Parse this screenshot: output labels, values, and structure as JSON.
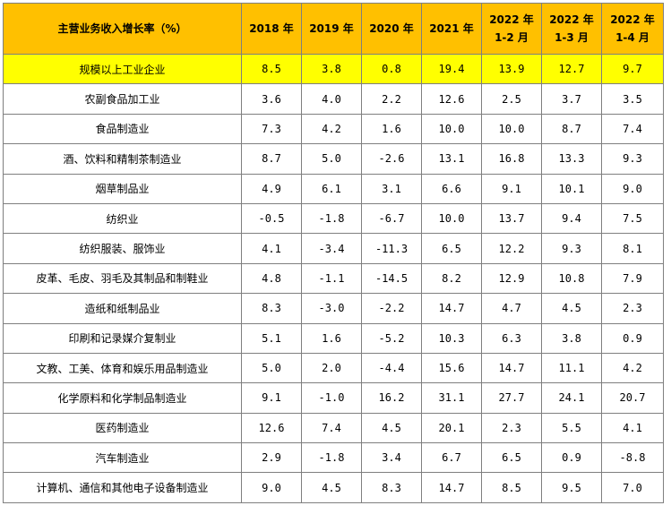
{
  "header": {
    "title": "主营业务收入增长率（%）",
    "periods": [
      {
        "line1": "2018 年",
        "line2": ""
      },
      {
        "line1": "2019 年",
        "line2": ""
      },
      {
        "line1": "2020 年",
        "line2": ""
      },
      {
        "line1": "2021 年",
        "line2": ""
      },
      {
        "line1": "2022 年",
        "line2": "1-2 月"
      },
      {
        "line1": "2022 年",
        "line2": "1-3 月"
      },
      {
        "line1": "2022 年",
        "line2": "1-4 月"
      }
    ]
  },
  "highlight_color": "#ffff00",
  "header_color": "#ffc000",
  "rows": [
    {
      "name": "规模以上工业企业",
      "values": [
        "8.5",
        "3.8",
        "0.8",
        "19.4",
        "13.9",
        "12.7",
        "9.7"
      ]
    },
    {
      "name": "农副食品加工业",
      "values": [
        "3.6",
        "4.0",
        "2.2",
        "12.6",
        "2.5",
        "3.7",
        "3.5"
      ]
    },
    {
      "name": "食品制造业",
      "values": [
        "7.3",
        "4.2",
        "1.6",
        "10.0",
        "10.0",
        "8.7",
        "7.4"
      ]
    },
    {
      "name": "酒、饮料和精制茶制造业",
      "values": [
        "8.7",
        "5.0",
        "-2.6",
        "13.1",
        "16.8",
        "13.3",
        "9.3"
      ]
    },
    {
      "name": "烟草制品业",
      "values": [
        "4.9",
        "6.1",
        "3.1",
        "6.6",
        "9.1",
        "10.1",
        "9.0"
      ]
    },
    {
      "name": "纺织业",
      "values": [
        "-0.5",
        "-1.8",
        "-6.7",
        "10.0",
        "13.7",
        "9.4",
        "7.5"
      ]
    },
    {
      "name": "纺织服装、服饰业",
      "values": [
        "4.1",
        "-3.4",
        "-11.3",
        "6.5",
        "12.2",
        "9.3",
        "8.1"
      ]
    },
    {
      "name": "皮革、毛皮、羽毛及其制品和制鞋业",
      "values": [
        "4.8",
        "-1.1",
        "-14.5",
        "8.2",
        "12.9",
        "10.8",
        "7.9"
      ]
    },
    {
      "name": "造纸和纸制品业",
      "values": [
        "8.3",
        "-3.0",
        "-2.2",
        "14.7",
        "4.7",
        "4.5",
        "2.3"
      ]
    },
    {
      "name": "印刷和记录媒介复制业",
      "values": [
        "5.1",
        "1.6",
        "-5.2",
        "10.3",
        "6.3",
        "3.8",
        "0.9"
      ]
    },
    {
      "name": "文教、工美、体育和娱乐用品制造业",
      "values": [
        "5.0",
        "2.0",
        "-4.4",
        "15.6",
        "14.7",
        "11.1",
        "4.2"
      ]
    },
    {
      "name": "化学原料和化学制品制造业",
      "values": [
        "9.1",
        "-1.0",
        "16.2",
        "31.1",
        "27.7",
        "24.1",
        "20.7"
      ]
    },
    {
      "name": "医药制造业",
      "values": [
        "12.6",
        "7.4",
        "4.5",
        "20.1",
        "2.3",
        "5.5",
        "4.1"
      ]
    },
    {
      "name": "汽车制造业",
      "values": [
        "2.9",
        "-1.8",
        "3.4",
        "6.7",
        "6.5",
        "0.9",
        "-8.8"
      ]
    },
    {
      "name": "计算机、通信和其他电子设备制造业",
      "values": [
        "9.0",
        "4.5",
        "8.3",
        "14.7",
        "8.5",
        "9.5",
        "7.0"
      ]
    }
  ]
}
